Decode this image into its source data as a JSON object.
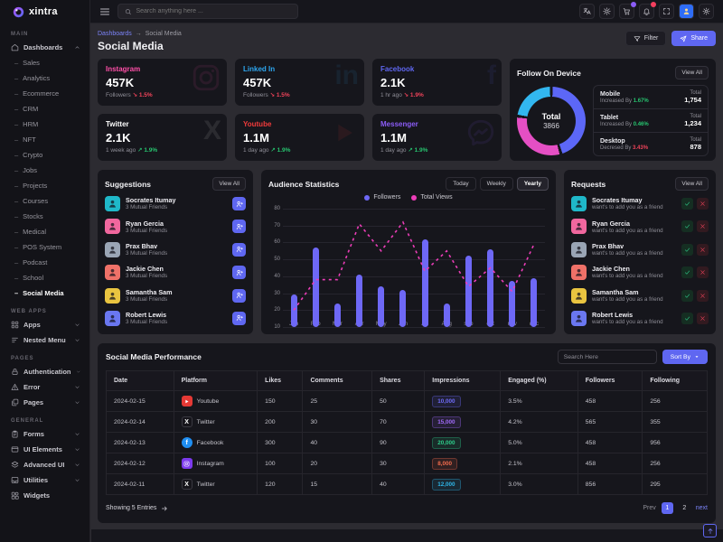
{
  "brand": {
    "name": "xintra"
  },
  "header": {
    "search_placeholder": "Search anything here ...",
    "icons": [
      {
        "name": "translate",
        "badge": null
      },
      {
        "name": "sun",
        "badge": null
      },
      {
        "name": "cart",
        "badge": "purple"
      },
      {
        "name": "bell",
        "badge": "pink"
      },
      {
        "name": "fullscreen",
        "badge": null
      },
      {
        "name": "avatar",
        "badge": null
      },
      {
        "name": "gear",
        "badge": null
      }
    ]
  },
  "sidebar": {
    "sections": [
      {
        "label": "MAIN",
        "items": [
          {
            "label": "Dashboards",
            "icon": "home",
            "chevron": "up",
            "active_child": "Social Media",
            "children": [
              "Sales",
              "Analytics",
              "Ecommerce",
              "CRM",
              "HRM",
              "NFT",
              "Crypto",
              "Jobs",
              "Projects",
              "Courses",
              "Stocks",
              "Medical",
              "POS System",
              "Podcast",
              "School",
              "Social Media"
            ]
          }
        ]
      },
      {
        "label": "WEB APPS",
        "items": [
          {
            "label": "Apps",
            "icon": "apps",
            "chevron": "down"
          },
          {
            "label": "Nested Menu",
            "icon": "nested",
            "chevron": "down"
          }
        ]
      },
      {
        "label": "PAGES",
        "items": [
          {
            "label": "Authentication",
            "icon": "lock",
            "chevron": "down"
          },
          {
            "label": "Error",
            "icon": "warning",
            "chevron": "down"
          },
          {
            "label": "Pages",
            "icon": "pages",
            "chevron": "down"
          }
        ]
      },
      {
        "label": "GENERAL",
        "items": [
          {
            "label": "Forms",
            "icon": "forms",
            "chevron": "down"
          },
          {
            "label": "UI Elements",
            "icon": "ui",
            "chevron": "down"
          },
          {
            "label": "Advanced UI",
            "icon": "advanced",
            "chevron": "down"
          },
          {
            "label": "Utilities",
            "icon": "utilities",
            "chevron": "down"
          },
          {
            "label": "Widgets",
            "icon": "widgets",
            "chevron": null
          }
        ]
      }
    ]
  },
  "breadcrumb": {
    "parent": "Dashboards",
    "separator": "→",
    "current": "Social Media"
  },
  "page": {
    "title": "Social Media"
  },
  "toolbar": {
    "filter_label": "Filter",
    "share_label": "Share"
  },
  "stat_cards": [
    {
      "platform": "Instagram",
      "color": "#ff4fa8",
      "value": "457K",
      "meta": "Followers",
      "trend": "down",
      "trend_value": "1.5%",
      "wm_type": "svg",
      "wm": "instagram"
    },
    {
      "platform": "Linked In",
      "color": "#2ea7f0",
      "value": "457K",
      "meta": "Followers",
      "trend": "down",
      "trend_value": "1.5%",
      "wm_type": "txt",
      "wm": "in"
    },
    {
      "platform": "Facebook",
      "color": "#5f67f1",
      "value": "2.1K",
      "meta": "1 hr ago",
      "trend": "down",
      "trend_value": "1.9%",
      "wm_type": "txt",
      "wm": "f"
    },
    {
      "platform": "Twitter",
      "color": "#ffffff",
      "value": "2.1K",
      "meta": "1 week ago",
      "trend": "up",
      "trend_value": "1.9%",
      "wm_type": "txt",
      "wm": "X"
    },
    {
      "platform": "Youtube",
      "color": "#f13b3b",
      "value": "1.1M",
      "meta": "1 day ago",
      "trend": "up",
      "trend_value": "1.9%",
      "wm_type": "svg",
      "wm": "play"
    },
    {
      "platform": "Messenger",
      "color": "#8b5cf6",
      "value": "1.1M",
      "meta": "1 day ago",
      "trend": "up",
      "trend_value": "1.9%",
      "wm_type": "svg",
      "wm": "messenger"
    }
  ],
  "follow_on_device": {
    "title": "Follow On Device",
    "view_all": "View All",
    "total_label": "Total",
    "total": "3866",
    "segments": [
      {
        "name": "Mobile",
        "color": "#5c67f7",
        "pct": 45.4,
        "change_label": "Increased By",
        "change": "1.67%",
        "direction": "up",
        "total_label": "Total",
        "total": "1,754"
      },
      {
        "name": "Tablet",
        "color": "#e54fc4",
        "pct": 31.9,
        "change_label": "Increased By",
        "change": "0.46%",
        "direction": "up",
        "total_label": "Total",
        "total": "1,234"
      },
      {
        "name": "Desktop",
        "color": "#32b7f0",
        "pct": 22.7,
        "change_label": "Decresed By",
        "change": "3.43%",
        "direction": "down",
        "total_label": "Total",
        "total": "878"
      }
    ]
  },
  "suggestions": {
    "title": "Suggestions",
    "view_all": "View All",
    "mutual_label": "3 Mutual Friends",
    "items": [
      {
        "name": "Socrates Itumay",
        "avatar_color": "#1fb8c9"
      },
      {
        "name": "Ryan Gercia",
        "avatar_color": "#f0679e"
      },
      {
        "name": "Prax Bhav",
        "avatar_color": "#9aa5b5"
      },
      {
        "name": "Jackie Chen",
        "avatar_color": "#ef7168"
      },
      {
        "name": "Samantha Sam",
        "avatar_color": "#e9c440"
      },
      {
        "name": "Robert Lewis",
        "avatar_color": "#6a77f0"
      }
    ]
  },
  "requests": {
    "title": "Requests",
    "view_all": "View All",
    "sub_label": "want's to add you as a friend",
    "items": [
      {
        "name": "Socrates Itumay",
        "avatar_color": "#1fb8c9"
      },
      {
        "name": "Ryan Gercia",
        "avatar_color": "#f0679e"
      },
      {
        "name": "Prax Bhav",
        "avatar_color": "#9aa5b5"
      },
      {
        "name": "Jackie Chen",
        "avatar_color": "#ef7168"
      },
      {
        "name": "Samantha Sam",
        "avatar_color": "#e9c440"
      },
      {
        "name": "Robert Lewis",
        "avatar_color": "#6a77f0"
      }
    ]
  },
  "audience": {
    "title": "Audience Statistics",
    "buttons": [
      "Today",
      "Weekly",
      "Yearly"
    ],
    "active_button": "Yearly"
  },
  "chart_data": {
    "type": "bar+line",
    "title": "Audience Statistics",
    "categories": [
      "Jan",
      "Feb",
      "Mar",
      "Apr",
      "May",
      "Jun",
      "Jul",
      "Aug",
      "sep",
      "oct",
      "nov",
      "dec"
    ],
    "series": [
      {
        "name": "Followers",
        "type": "bar",
        "color": "#6e68f6",
        "values": [
          29,
          57,
          24,
          41,
          34,
          32,
          62,
          24,
          52,
          56,
          37,
          39
        ]
      },
      {
        "name": "Total Views",
        "type": "dashed-line",
        "color": "#ec3db8",
        "values": [
          20,
          38,
          38,
          71,
          55,
          72,
          43,
          55,
          34,
          45,
          31,
          59
        ]
      }
    ],
    "ylim": [
      10,
      80
    ],
    "yticks": [
      10,
      20,
      30,
      40,
      50,
      60,
      70,
      80
    ],
    "grid": true,
    "legend_position": "top"
  },
  "table": {
    "title": "Social Media Performance",
    "search_placeholder": "Search Here",
    "sort_by": "Sort By",
    "columns": [
      "Date",
      "Platform",
      "Likes",
      "Comments",
      "Shares",
      "Impressions",
      "Engaged (%)",
      "Followers",
      "Following"
    ],
    "rows": [
      {
        "date": "2024-02-15",
        "platform": "Youtube",
        "platform_icon": "youtube",
        "icon_color": "#e53935",
        "likes": "150",
        "comments": "25",
        "shares": "50",
        "impressions": "10,000",
        "impressions_color": "#6e6bf8",
        "engaged": "3.5%",
        "followers": "458",
        "following": "256"
      },
      {
        "date": "2024-02-14",
        "platform": "Twitter",
        "platform_icon": "xlogo",
        "icon_color": "#16151b",
        "likes": "200",
        "comments": "30",
        "shares": "70",
        "impressions": "15,000",
        "impressions_color": "#a06af8",
        "engaged": "4.2%",
        "followers": "565",
        "following": "355"
      },
      {
        "date": "2024-02-13",
        "platform": "Facebook",
        "platform_icon": "fb",
        "icon_color": "#1f8ef1",
        "likes": "300",
        "comments": "40",
        "shares": "90",
        "impressions": "20,000",
        "impressions_color": "#2ecc8a",
        "engaged": "5.0%",
        "followers": "458",
        "following": "956"
      },
      {
        "date": "2024-02-12",
        "platform": "Instagram",
        "platform_icon": "instagram",
        "icon_color": "#7c3aed",
        "likes": "100",
        "comments": "20",
        "shares": "30",
        "impressions": "8,000",
        "impressions_color": "#ef6a4c",
        "engaged": "2.1%",
        "followers": "458",
        "following": "256"
      },
      {
        "date": "2024-02-11",
        "platform": "Twitter",
        "platform_icon": "xlogo",
        "icon_color": "#16151b",
        "likes": "120",
        "comments": "15",
        "shares": "40",
        "impressions": "12,000",
        "impressions_color": "#2fb6e8",
        "engaged": "3.0%",
        "followers": "856",
        "following": "295"
      }
    ],
    "footer": {
      "showing": "Showing 5 Entries",
      "prev": "Prev",
      "pages": [
        "1",
        "2"
      ],
      "active_page": "1",
      "next": "next"
    }
  }
}
